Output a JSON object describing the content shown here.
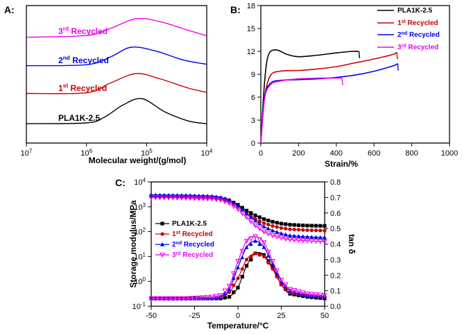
{
  "chart_data": [
    {
      "panel": "A:",
      "type": "line",
      "xlabel": "Molecular weight/(g/mol)",
      "ylabel": "",
      "x_scale": "log-reversed",
      "xlim": [
        10000000,
        10000
      ],
      "xticks": [
        "10^7",
        "10^6",
        "10^5",
        "10^4"
      ],
      "curve_label_position": "left-of-peaks",
      "series": [
        {
          "name": "PLA1K-2.5",
          "color": "#000000",
          "x": [
            10000000,
            1000000,
            500000,
            250000,
            120000,
            50000,
            20000,
            10000
          ],
          "values": [
            0.05,
            0.08,
            0.3,
            0.75,
            1.0,
            0.5,
            0.15,
            0.05
          ]
        },
        {
          "name": "1st Recycled",
          "color": "#cc0000",
          "x": [
            10000000,
            1000000,
            400000,
            150000,
            60000,
            20000,
            10000
          ],
          "values": [
            0.05,
            0.08,
            0.55,
            1.0,
            0.75,
            0.3,
            0.1
          ]
        },
        {
          "name": "2nd Recycled",
          "color": "#0000ee",
          "x": [
            10000000,
            1000000,
            400000,
            180000,
            70000,
            25000,
            10000
          ],
          "values": [
            0.05,
            0.1,
            0.5,
            1.0,
            0.8,
            0.35,
            0.12
          ]
        },
        {
          "name": "3rd Recycled",
          "color": "#ee00ee",
          "x": [
            10000000,
            1000000,
            400000,
            150000,
            60000,
            20000,
            10000
          ],
          "values": [
            0.05,
            0.14,
            0.5,
            1.0,
            0.85,
            0.4,
            0.12
          ]
        }
      ]
    },
    {
      "panel": "B:",
      "type": "line",
      "xlabel": "Strain/%",
      "ylabel": "",
      "xlim": [
        0,
        1000
      ],
      "ylim": [
        0,
        18
      ],
      "xticks": [
        0,
        200,
        400,
        600,
        800,
        1000
      ],
      "yticks": [
        0,
        3,
        6,
        9,
        12,
        15,
        18
      ],
      "legend": "top-right",
      "series": [
        {
          "name": "PLA1K-2.5",
          "color": "#000000",
          "x": [
            0,
            20,
            40,
            80,
            140,
            200,
            300,
            400,
            480,
            520
          ],
          "values": [
            0,
            8,
            11.5,
            12.2,
            11.6,
            11.3,
            11.5,
            11.8,
            12,
            12
          ]
        },
        {
          "name": "1st Recycled",
          "color": "#cc0000",
          "x": [
            0,
            20,
            50,
            100,
            200,
            300,
            400,
            500,
            600,
            700,
            720
          ],
          "values": [
            0,
            6,
            8.8,
            9.4,
            9.5,
            9.7,
            10,
            10.5,
            11,
            11.6,
            11.9
          ]
        },
        {
          "name": "2nd Recycled",
          "color": "#0000ee",
          "x": [
            0,
            20,
            50,
            100,
            200,
            300,
            400,
            500,
            600,
            700,
            725
          ],
          "values": [
            0,
            6,
            7.8,
            8.2,
            8.3,
            8.4,
            8.6,
            8.9,
            9.4,
            10.1,
            10.4
          ]
        },
        {
          "name": "3rd Recycled",
          "color": "#ee00ee",
          "x": [
            0,
            20,
            50,
            100,
            200,
            300,
            430
          ],
          "values": [
            0,
            5.8,
            7.6,
            8.1,
            8.4,
            8.5,
            8.5
          ]
        }
      ]
    },
    {
      "panel": "C:",
      "type": "line",
      "xlabel": "Temperature/°C",
      "ylabel": "Storage modulus/MPa",
      "y2label": "tan δ",
      "xlim": [
        -50,
        50
      ],
      "ylim": [
        0.1,
        10000
      ],
      "y_scale": "log",
      "y2lim": [
        0,
        0.8
      ],
      "xticks": [
        -50,
        -25,
        0,
        25,
        50
      ],
      "yticks": [
        "10^-1",
        "10^0",
        "10^1",
        "10^2",
        "10^3",
        "10^4"
      ],
      "y2ticks": [
        0.0,
        0.1,
        0.2,
        0.3,
        0.4,
        0.5,
        0.6,
        0.7,
        0.8
      ],
      "legend": "left",
      "series": [
        {
          "name": "PLA1K-2.5",
          "color": "#000000",
          "marker": "square",
          "x": [
            -50,
            -30,
            -15,
            -10,
            -5,
            0,
            5,
            10,
            15,
            20,
            25,
            30,
            40,
            50
          ],
          "modulus": [
            2700,
            2600,
            2400,
            2200,
            1800,
            1200,
            700,
            450,
            320,
            250,
            210,
            190,
            175,
            170
          ],
          "tan_delta": [
            0.05,
            0.05,
            0.05,
            0.05,
            0.06,
            0.12,
            0.26,
            0.34,
            0.33,
            0.25,
            0.14,
            0.08,
            0.06,
            0.05
          ]
        },
        {
          "name": "1st Recycled",
          "color": "#cc0000",
          "marker": "circle",
          "x": [
            -50,
            -30,
            -15,
            -10,
            -5,
            0,
            5,
            10,
            15,
            20,
            25,
            30,
            40,
            50
          ],
          "modulus": [
            2500,
            2400,
            2200,
            2000,
            1600,
            1000,
            550,
            320,
            220,
            170,
            140,
            125,
            115,
            110
          ],
          "tan_delta": [
            0.05,
            0.05,
            0.05,
            0.06,
            0.09,
            0.18,
            0.3,
            0.34,
            0.32,
            0.24,
            0.14,
            0.09,
            0.07,
            0.06
          ]
        },
        {
          "name": "2nd Recycled",
          "color": "#0000ee",
          "marker": "triangle-up",
          "x": [
            -50,
            -30,
            -15,
            -10,
            -5,
            0,
            5,
            10,
            15,
            20,
            25,
            30,
            40,
            50
          ],
          "modulus": [
            3000,
            2900,
            2700,
            2400,
            1900,
            1100,
            550,
            280,
            160,
            110,
            85,
            70,
            62,
            58
          ],
          "tan_delta": [
            0.05,
            0.05,
            0.05,
            0.06,
            0.11,
            0.25,
            0.38,
            0.42,
            0.38,
            0.27,
            0.16,
            0.1,
            0.07,
            0.06
          ]
        },
        {
          "name": "3rd Recycled",
          "color": "#ee00ee",
          "marker": "triangle-down",
          "x": [
            -50,
            -30,
            -15,
            -10,
            -5,
            0,
            5,
            10,
            15,
            20,
            25,
            30,
            40,
            50
          ],
          "modulus": [
            2400,
            2300,
            2100,
            1900,
            1400,
            800,
            380,
            180,
            100,
            70,
            56,
            48,
            43,
            40
          ],
          "tan_delta": [
            0.05,
            0.05,
            0.06,
            0.07,
            0.13,
            0.29,
            0.42,
            0.45,
            0.41,
            0.29,
            0.17,
            0.11,
            0.08,
            0.07
          ]
        }
      ]
    }
  ]
}
